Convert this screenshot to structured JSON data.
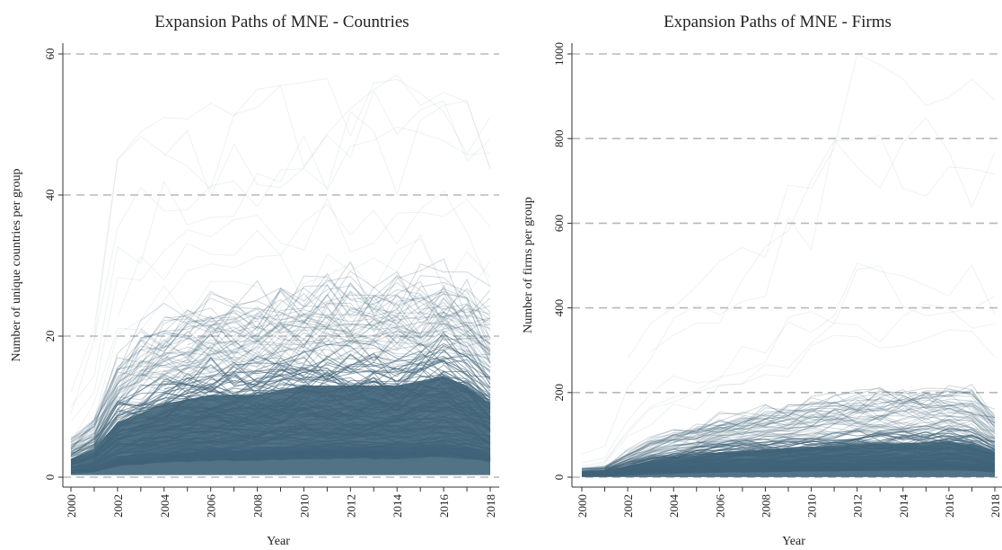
{
  "chart_data": [
    {
      "type": "line",
      "title": "Expansion Paths of MNE - Countries",
      "xlabel": "Year",
      "ylabel": "Number of unique countries per group",
      "xlim": [
        2000,
        2018
      ],
      "ylim": [
        0,
        60
      ],
      "x_ticks": [
        "2000",
        "2002",
        "2004",
        "2006",
        "2008",
        "2010",
        "2012",
        "2014",
        "2016",
        "2018"
      ],
      "y_ticks": [
        "0",
        "20",
        "40",
        "60"
      ],
      "grid": "dashed horizontal",
      "series_color": "#3f6378",
      "envelope": {
        "x": [
          2000,
          2001,
          2002,
          2003,
          2004,
          2006,
          2008,
          2010,
          2012,
          2014,
          2016,
          2017,
          2018
        ],
        "max": [
          12,
          22,
          45,
          49,
          51,
          53,
          55,
          56,
          57,
          58,
          59,
          57,
          54
        ],
        "p90": [
          5,
          8,
          16,
          20,
          22,
          24,
          25,
          26,
          27,
          27,
          28,
          27,
          24
        ],
        "p50": [
          2,
          3,
          6,
          7,
          8,
          9,
          9,
          10,
          10,
          10,
          11,
          10,
          8
        ]
      }
    },
    {
      "type": "line",
      "title": "Expansion Paths of MNE - Firms",
      "xlabel": "Year",
      "ylabel": "Number of firms per group",
      "xlim": [
        2000,
        2018
      ],
      "ylim": [
        0,
        1000
      ],
      "x_ticks": [
        "2000",
        "2002",
        "2004",
        "2006",
        "2008",
        "2010",
        "2012",
        "2014",
        "2016",
        "2018"
      ],
      "y_ticks": [
        "0",
        "200",
        "400",
        "600",
        "800",
        "1000"
      ],
      "grid": "dashed horizontal",
      "series_color": "#3f6378",
      "envelope": {
        "x": [
          2000,
          2001,
          2002,
          2003,
          2004,
          2006,
          2008,
          2010,
          2012,
          2014,
          2016,
          2017,
          2018
        ],
        "max": [
          60,
          80,
          280,
          380,
          440,
          510,
          600,
          780,
          1000,
          950,
          940,
          940,
          950
        ],
        "p90": [
          20,
          25,
          60,
          90,
          110,
          140,
          160,
          180,
          190,
          200,
          210,
          200,
          150
        ],
        "p50": [
          8,
          10,
          20,
          30,
          35,
          45,
          50,
          55,
          60,
          62,
          65,
          60,
          45
        ]
      }
    }
  ]
}
